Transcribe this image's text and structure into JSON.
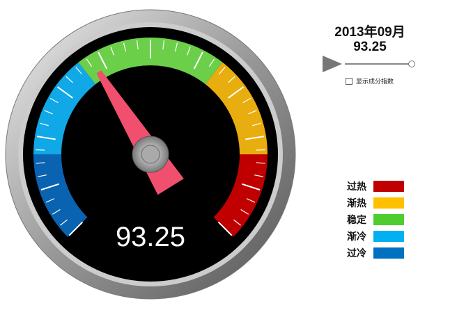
{
  "header": {
    "date": "2013年09月",
    "value": "93.25"
  },
  "controls": {
    "show_components_label": "显示成分指数",
    "show_components_checked": false
  },
  "gauge": {
    "value_display": "93.25",
    "value": 93.25,
    "needle_angle_deg": -32,
    "bands": [
      {
        "from": -135,
        "to": -90,
        "color": "#0a63b0"
      },
      {
        "from": -90,
        "to": -38,
        "color": "#10a8e6"
      },
      {
        "from": -38,
        "to": 38,
        "color": "#6ccf4a"
      },
      {
        "from": 38,
        "to": 90,
        "color": "#e8ae10"
      },
      {
        "from": 90,
        "to": 135,
        "color": "#c00000"
      }
    ]
  },
  "legend": [
    {
      "label": "过热",
      "color": "#c00000"
    },
    {
      "label": "渐热",
      "color": "#ffc000"
    },
    {
      "label": "稳定",
      "color": "#4fcc2f"
    },
    {
      "label": "渐冷",
      "color": "#00b0f0"
    },
    {
      "label": "过冷",
      "color": "#0070c0"
    }
  ]
}
